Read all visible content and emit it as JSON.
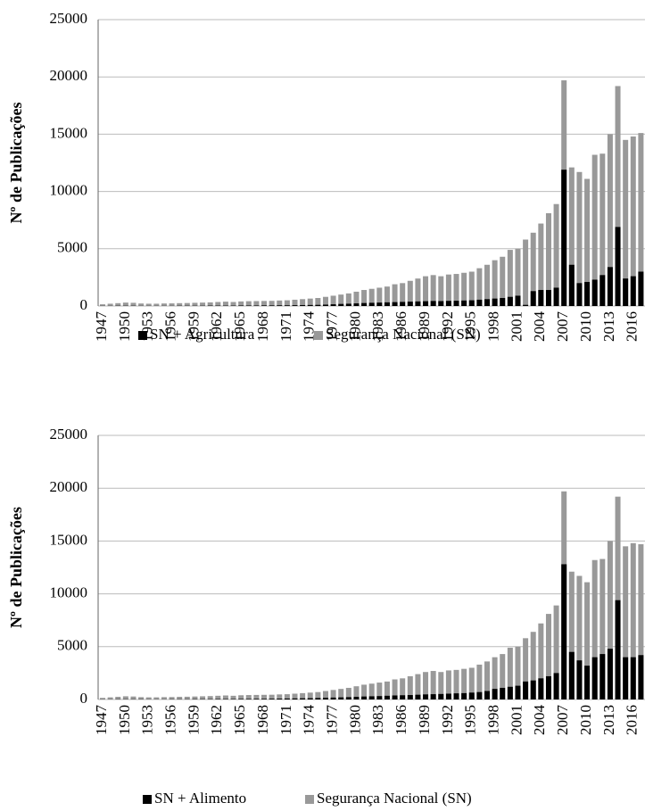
{
  "chart_data": [
    {
      "type": "bar",
      "ylabel": "Nº de Publicações",
      "categories": [
        "1947",
        null,
        null,
        "1950",
        null,
        null,
        "1953",
        null,
        null,
        "1956",
        null,
        null,
        "1959",
        null,
        null,
        "1962",
        null,
        null,
        "1965",
        null,
        null,
        "1968",
        null,
        null,
        "1971",
        null,
        null,
        "1974",
        null,
        null,
        "1977",
        null,
        null,
        "1980",
        null,
        null,
        "1983",
        null,
        null,
        "1986",
        null,
        null,
        "1989",
        null,
        null,
        "1992",
        null,
        null,
        "1995",
        null,
        null,
        "1998",
        null,
        null,
        "2001",
        null,
        null,
        "2004",
        null,
        null,
        "2007",
        null,
        null,
        "2010",
        null,
        null,
        "2013",
        null,
        null,
        "2016",
        null
      ],
      "series": [
        {
          "name": "SN + Agricultura",
          "color": "#000000",
          "values": [
            10,
            10,
            20,
            20,
            20,
            10,
            10,
            10,
            10,
            10,
            20,
            20,
            20,
            20,
            30,
            30,
            30,
            30,
            40,
            40,
            40,
            50,
            50,
            60,
            60,
            70,
            80,
            90,
            100,
            120,
            150,
            180,
            200,
            230,
            260,
            280,
            300,
            320,
            340,
            360,
            380,
            400,
            420,
            440,
            430,
            450,
            460,
            480,
            500,
            550,
            600,
            650,
            700,
            800,
            900,
            100,
            1300,
            1400,
            1400,
            1600,
            11900,
            3600,
            2000,
            2100,
            2300,
            2700,
            3400,
            6900,
            2400,
            2600,
            3000
          ]
        },
        {
          "name": "Segurança Nacional (SN)",
          "color": "#999999",
          "values": [
            150,
            200,
            250,
            300,
            280,
            220,
            200,
            200,
            220,
            230,
            250,
            260,
            280,
            300,
            320,
            350,
            380,
            350,
            400,
            420,
            430,
            440,
            450,
            480,
            500,
            550,
            600,
            650,
            700,
            800,
            900,
            1000,
            1100,
            1250,
            1400,
            1500,
            1600,
            1700,
            1900,
            2000,
            2200,
            2400,
            2600,
            2700,
            2600,
            2750,
            2800,
            2900,
            3000,
            3300,
            3600,
            4000,
            4300,
            4900,
            5000,
            5800,
            6400,
            7200,
            8100,
            8900,
            19700,
            12100,
            11700,
            11100,
            13200,
            13300,
            15000,
            19200,
            14500,
            14800,
            15100
          ]
        }
      ],
      "ylim": [
        0,
        25000
      ],
      "yticks": [
        0,
        5000,
        10000,
        15000,
        20000,
        25000
      ],
      "grid": true
    },
    {
      "type": "bar",
      "ylabel": "Nº de Publicações",
      "categories": [
        "1947",
        null,
        null,
        "1950",
        null,
        null,
        "1953",
        null,
        null,
        "1956",
        null,
        null,
        "1959",
        null,
        null,
        "1962",
        null,
        null,
        "1965",
        null,
        null,
        "1968",
        null,
        null,
        "1971",
        null,
        null,
        "1974",
        null,
        null,
        "1977",
        null,
        null,
        "1980",
        null,
        null,
        "1983",
        null,
        null,
        "1986",
        null,
        null,
        "1989",
        null,
        null,
        "1992",
        null,
        null,
        "1995",
        null,
        null,
        "1998",
        null,
        null,
        "2001",
        null,
        null,
        "2004",
        null,
        null,
        "2007",
        null,
        null,
        "2010",
        null,
        null,
        "2013",
        null,
        null,
        "2016",
        null
      ],
      "series": [
        {
          "name": "SN + Alimento",
          "color": "#000000",
          "values": [
            10,
            10,
            20,
            20,
            20,
            20,
            10,
            10,
            10,
            20,
            20,
            20,
            30,
            30,
            30,
            40,
            40,
            40,
            50,
            50,
            60,
            60,
            70,
            80,
            90,
            100,
            110,
            120,
            140,
            160,
            180,
            200,
            220,
            250,
            280,
            300,
            320,
            350,
            380,
            400,
            420,
            450,
            480,
            500,
            520,
            550,
            580,
            600,
            650,
            700,
            800,
            1000,
            1100,
            1200,
            1300,
            1700,
            1800,
            2000,
            2200,
            2500,
            12800,
            4500,
            3700,
            3200,
            4000,
            4300,
            4800,
            9400,
            4000,
            4000,
            4200
          ]
        },
        {
          "name": "Segurança Nacional (SN)",
          "color": "#999999",
          "values": [
            150,
            200,
            250,
            300,
            280,
            220,
            200,
            200,
            220,
            230,
            250,
            260,
            280,
            300,
            320,
            350,
            380,
            350,
            400,
            420,
            430,
            440,
            450,
            480,
            500,
            550,
            600,
            650,
            700,
            800,
            900,
            1000,
            1100,
            1250,
            1400,
            1500,
            1600,
            1700,
            1900,
            2000,
            2200,
            2400,
            2600,
            2700,
            2600,
            2750,
            2800,
            2900,
            3000,
            3300,
            3600,
            4000,
            4300,
            4900,
            5000,
            5800,
            6400,
            7200,
            8100,
            8900,
            19700,
            12100,
            11700,
            11100,
            13200,
            13300,
            15000,
            19200,
            14500,
            14800,
            14700
          ]
        }
      ],
      "ylim": [
        0,
        25000
      ],
      "yticks": [
        0,
        5000,
        10000,
        15000,
        20000,
        25000
      ],
      "grid": true
    }
  ]
}
